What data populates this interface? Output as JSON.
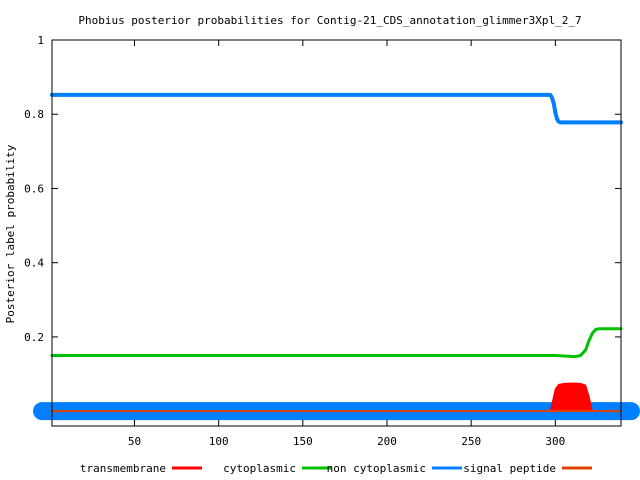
{
  "chart_data": {
    "type": "line",
    "title": "Phobius posterior probabilities for Contig-21_CDS_annotation_glimmer3Xpl_2_7",
    "xlabel": "",
    "ylabel": "Posterior label probability",
    "xlim": [
      1,
      339
    ],
    "ylim": [
      -0.04,
      1.0
    ],
    "xticks": [
      50,
      100,
      150,
      200,
      250,
      300
    ],
    "yticks": [
      0.2,
      0.4,
      0.6,
      0.8,
      1
    ],
    "ytick_labels": [
      "0.2",
      "0.4",
      "0.6",
      "0.8",
      "1"
    ],
    "grid": false,
    "legend_position": "bottom",
    "series": [
      {
        "name": "transmembrane",
        "color": "#ff0000",
        "style": "filled",
        "x": [
          1,
          297,
          298,
          300,
          302,
          305,
          310,
          315,
          318,
          320,
          321,
          322,
          339
        ],
        "y": [
          0,
          0,
          0.02,
          0.06,
          0.072,
          0.075,
          0.076,
          0.075,
          0.07,
          0.04,
          0.02,
          0,
          0
        ]
      },
      {
        "name": "cytoplasmic",
        "color": "#00c000",
        "style": "line",
        "x": [
          1,
          300,
          312,
          315,
          318,
          320,
          322,
          324,
          326,
          339
        ],
        "y": [
          0.15,
          0.15,
          0.147,
          0.15,
          0.165,
          0.19,
          0.21,
          0.22,
          0.222,
          0.222
        ]
      },
      {
        "name": "non cytoplasmic",
        "color": "#0080ff",
        "style": "line",
        "x": [
          1,
          297,
          298,
          299,
          300,
          301,
          302,
          303,
          305,
          339
        ],
        "y": [
          0.852,
          0.852,
          0.845,
          0.83,
          0.805,
          0.787,
          0.78,
          0.778,
          0.778,
          0.778
        ]
      },
      {
        "name": "signal peptide",
        "color": "#e04000",
        "style": "line",
        "x": [
          1,
          339
        ],
        "y": [
          0,
          0
        ]
      }
    ]
  }
}
